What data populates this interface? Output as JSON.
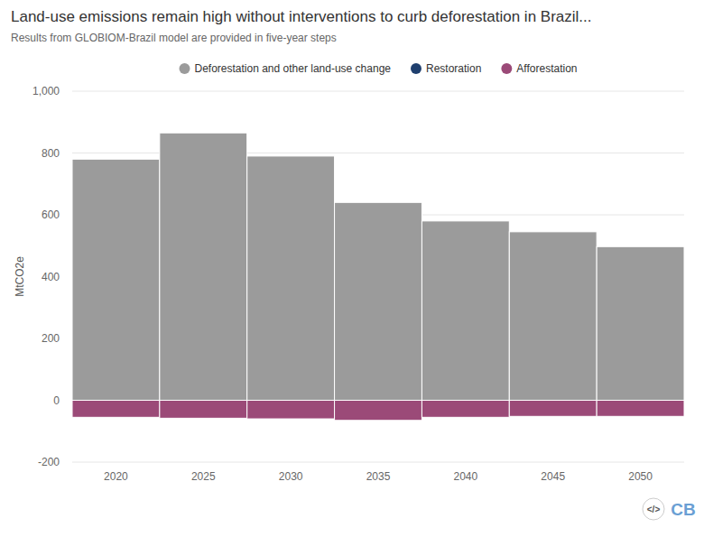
{
  "chart_data": {
    "type": "bar",
    "title": "Land-use emissions remain high without interventions to curb deforestation in Brazil...",
    "subtitle": "Results from GLOBIOM-Brazil model are provided in five-year steps",
    "y_label": "MtCO2e",
    "categories": [
      "2020",
      "2025",
      "2030",
      "2035",
      "2040",
      "2045",
      "2050"
    ],
    "series": [
      {
        "name": "Deforestation and other land-use change",
        "color": "#9b9b9b",
        "values": [
          780,
          865,
          790,
          640,
          580,
          545,
          497
        ]
      },
      {
        "name": "Restoration",
        "color": "#1f3f6e",
        "values": [
          0,
          0,
          0,
          0,
          0,
          0,
          0
        ]
      },
      {
        "name": "Afforestation",
        "color": "#9b4a78",
        "values": [
          -55,
          -58,
          -60,
          -65,
          -55,
          -52,
          -52
        ]
      }
    ],
    "ylim": [
      -200,
      1000
    ],
    "yticks": [
      -200,
      0,
      200,
      400,
      600,
      800,
      {
        "value": 1000,
        "label": "1,000"
      }
    ],
    "grid": true,
    "stacked": true,
    "legend": "top",
    "logo": "CB",
    "embed_icon": "</>"
  }
}
